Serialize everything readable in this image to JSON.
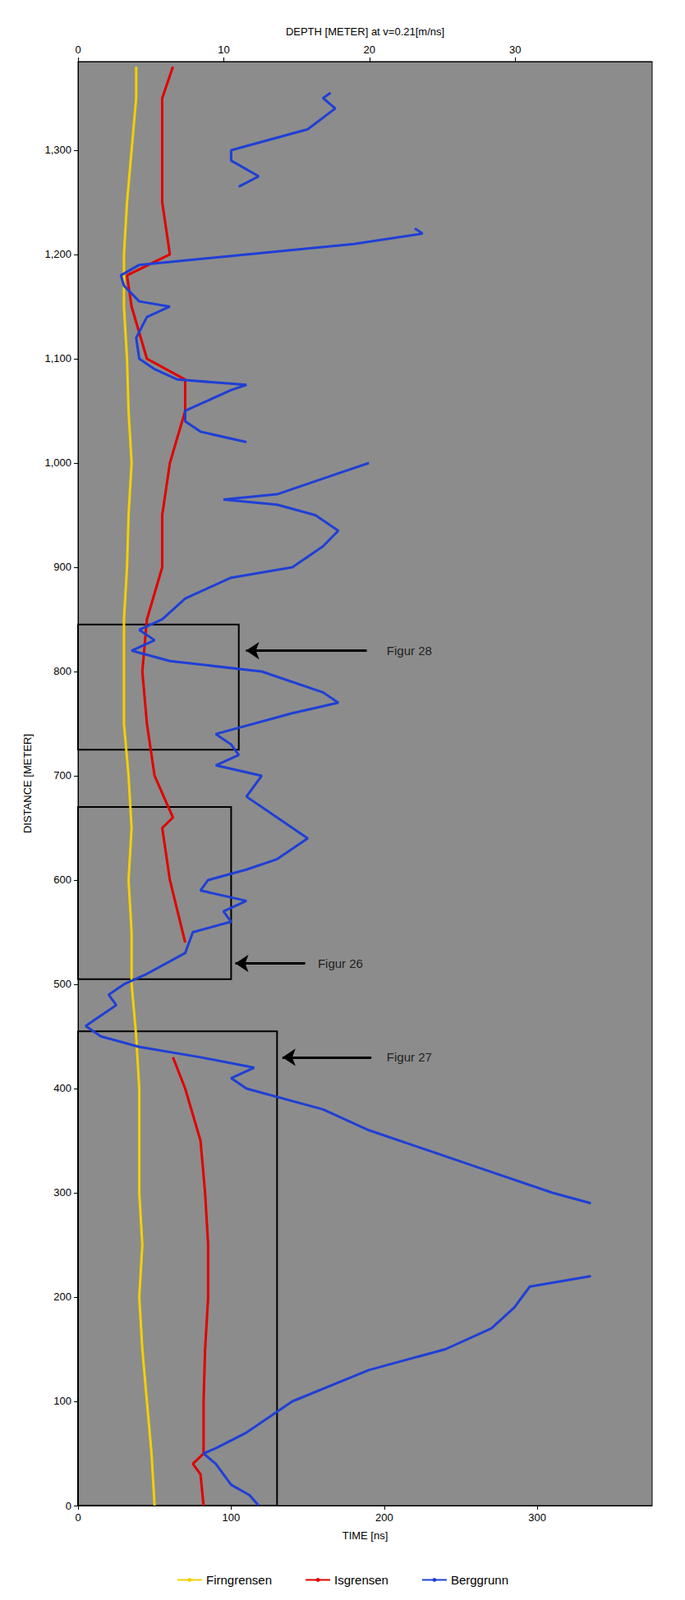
{
  "chart_data": {
    "type": "line",
    "xlabel": "TIME [ns]",
    "ylabel": "DISTANCE [METER]",
    "x2label": "DEPTH [METER] at v=0.21[m/ns]",
    "xlim": [
      0,
      375
    ],
    "xticks": [
      0,
      100,
      200,
      300
    ],
    "x2lim": [
      0,
      39.4
    ],
    "x2ticks": [
      0,
      10,
      20,
      30
    ],
    "ylim": [
      0,
      1385
    ],
    "yticks": [
      0,
      100,
      200,
      300,
      400,
      500,
      600,
      700,
      800,
      900,
      1000,
      1100,
      1200,
      1300
    ],
    "grid": false,
    "legend": "bottom",
    "series": [
      {
        "name": "Firngrensen",
        "color": "#f2d000",
        "x": [
          50,
          48,
          45,
          42,
          40,
          42,
          40,
          40,
          40,
          38,
          35,
          35,
          33,
          35,
          33,
          30,
          30,
          30,
          32,
          33,
          35,
          33,
          32,
          30,
          30,
          32,
          35,
          38,
          38
        ],
        "y": [
          0,
          50,
          100,
          150,
          200,
          250,
          300,
          350,
          400,
          450,
          500,
          550,
          600,
          650,
          700,
          750,
          800,
          850,
          900,
          950,
          1000,
          1050,
          1100,
          1150,
          1200,
          1250,
          1300,
          1350,
          1380
        ]
      },
      {
        "name": "Isgrensen",
        "color": "#e00000",
        "x": [
          82,
          80,
          75,
          82,
          82,
          83,
          85,
          85,
          83,
          80,
          70,
          62,
          null,
          70,
          60,
          55,
          62,
          50,
          45,
          42,
          45,
          55,
          55,
          60,
          70,
          70,
          45,
          35,
          32,
          60,
          55,
          55,
          55,
          62
        ],
        "y": [
          0,
          30,
          40,
          50,
          100,
          150,
          200,
          250,
          300,
          350,
          400,
          430,
          null,
          540,
          600,
          650,
          660,
          700,
          750,
          800,
          850,
          900,
          950,
          1000,
          1050,
          1080,
          1100,
          1150,
          1180,
          1200,
          1250,
          1300,
          1350,
          1380
        ]
      },
      {
        "name": "Berggrunn",
        "color": "#1f3fd6",
        "x": [
          118,
          112,
          100,
          95,
          90,
          82,
          90,
          110,
          140,
          190,
          240,
          270,
          285,
          290,
          295,
          335,
          null,
          335,
          310,
          270,
          230,
          190,
          160,
          110,
          100,
          115,
          80,
          40,
          15,
          5,
          15,
          25,
          20,
          30,
          45,
          70,
          75,
          100,
          95,
          110,
          80,
          85,
          110,
          130,
          150,
          130,
          110,
          120,
          90,
          105,
          100,
          90,
          140,
          170,
          160,
          120,
          60,
          35,
          50,
          40,
          55,
          70,
          100,
          140,
          160,
          170,
          155,
          130,
          95,
          130,
          170,
          190,
          null,
          110,
          80,
          70,
          70,
          100,
          110,
          65,
          50,
          40,
          38,
          45,
          60,
          40,
          30,
          28,
          40,
          110,
          180,
          225,
          220,
          null,
          105,
          118,
          100,
          100,
          150,
          168,
          160,
          165
        ],
        "y": [
          0,
          10,
          20,
          30,
          40,
          50,
          55,
          70,
          100,
          130,
          150,
          170,
          190,
          200,
          210,
          220,
          null,
          290,
          300,
          320,
          340,
          360,
          380,
          400,
          410,
          420,
          430,
          440,
          450,
          460,
          470,
          480,
          490,
          500,
          510,
          530,
          550,
          560,
          570,
          580,
          590,
          600,
          610,
          620,
          640,
          660,
          680,
          700,
          710,
          720,
          730,
          740,
          760,
          770,
          780,
          800,
          810,
          820,
          830,
          840,
          850,
          870,
          890,
          900,
          920,
          935,
          950,
          960,
          965,
          970,
          990,
          1000,
          null,
          1020,
          1030,
          1040,
          1050,
          1070,
          1075,
          1080,
          1090,
          1100,
          1120,
          1140,
          1150,
          1155,
          1170,
          1180,
          1190,
          1200,
          1210,
          1220,
          1225,
          null,
          1265,
          1275,
          1290,
          1300,
          1320,
          1340,
          1350,
          1355
        ]
      }
    ],
    "annotations": [
      {
        "text": "Figur 27",
        "x": 200,
        "y": 430,
        "box": {
          "xlim": [
            0,
            130
          ],
          "ylim": [
            0,
            455
          ]
        }
      },
      {
        "text": "Figur 26",
        "x": 155,
        "y": 520,
        "box": {
          "xlim": [
            0,
            100
          ],
          "ylim": [
            505,
            670
          ]
        }
      },
      {
        "text": "Figur 28",
        "x": 200,
        "y": 820,
        "box": {
          "xlim": [
            0,
            105
          ],
          "ylim": [
            725,
            845
          ]
        }
      }
    ]
  }
}
